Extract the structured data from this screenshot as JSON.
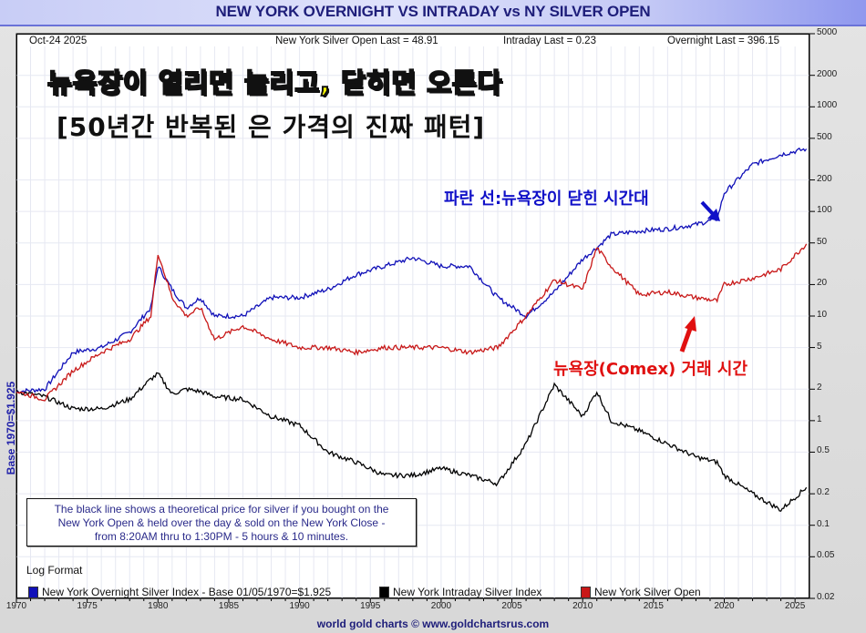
{
  "header": {
    "title": "NEW YORK OVERNIGHT VS INTRADAY vs NY SILVER OPEN",
    "date": "Oct-24  2025",
    "open_last": "New York Silver Open Last = 48.91",
    "intraday_last": "Intraday Last = 0.23",
    "overnight_last": "Overnight Last = 396.15"
  },
  "annotations": {
    "headline": "뉴욕장이 열리면 눌리고, 닫히면 오른다",
    "subheadline": "[50년간 반복된 은 가격의 진짜 패턴]",
    "blue_label": "파란 선:뉴욕장이 닫힌 시간대",
    "red_label": "뉴욕장(Comex) 거래 시간"
  },
  "note": {
    "line1": "The black line shows a theoretical price for silver if you bought on the",
    "line2": "New York Open & held over the day & sold on the New York Close -",
    "line3": "from 8:20AM thru to 1:30PM - 5 hours & 10 minutes."
  },
  "log_format": "Log Format",
  "y_axis_label": "Base 1970=$1.925",
  "footer": "world gold charts © www.goldchartsrus.com",
  "legend": [
    {
      "label": "New York Overnight Silver Index - Base 01/05/1970=$1.925",
      "color": "#1010b8"
    },
    {
      "label": "New York Intraday Silver Index",
      "color": "#000000"
    },
    {
      "label": "New York Silver Open",
      "color": "#c81818"
    }
  ],
  "y_ticks": [
    "5000",
    "2000",
    "1000",
    "500",
    "200",
    "100",
    "50",
    "20",
    "10",
    "5",
    "2",
    "1",
    "0.5",
    "0.2",
    "0.1",
    "0.05",
    "0.02"
  ],
  "x_ticks": [
    "1970",
    "1975",
    "1980",
    "1985",
    "1990",
    "1995",
    "2000",
    "2005",
    "2010",
    "2015",
    "2020",
    "2025"
  ],
  "chart_data": {
    "type": "line",
    "title": "NEW YORK OVERNIGHT VS INTRADAY vs NY SILVER OPEN",
    "xlabel": "",
    "ylabel": "Base 1970=$1.925",
    "yscale": "log",
    "ylim": [
      0.02,
      5000
    ],
    "xlim": [
      1970,
      2025.8
    ],
    "grid": true,
    "legend_position": "bottom",
    "x": [
      1970,
      1972,
      1974,
      1976,
      1978,
      1979.5,
      1980,
      1981,
      1982,
      1983,
      1984,
      1986,
      1988,
      1990,
      1992,
      1994,
      1996,
      1998,
      2000,
      2002,
      2004,
      2006,
      2008,
      2010,
      2011,
      2012,
      2014,
      2016,
      2018,
      2019.5,
      2020,
      2022,
      2024,
      2025.8
    ],
    "series": [
      {
        "name": "New York Overnight Silver Index - Base 01/05/1970=$1.925",
        "color": "#1010b8",
        "values": [
          1.9,
          2.0,
          4.5,
          5.0,
          7.0,
          12,
          30,
          18,
          12,
          15,
          10,
          10,
          15,
          15,
          18,
          25,
          30,
          36,
          30,
          30,
          15,
          10,
          17,
          35,
          45,
          60,
          65,
          68,
          75,
          85,
          150,
          280,
          350,
          396.15
        ]
      },
      {
        "name": "New York Intraday Silver Index",
        "color": "#000000",
        "values": [
          1.9,
          1.7,
          1.3,
          1.3,
          1.6,
          2.5,
          2.8,
          1.8,
          2.0,
          1.9,
          1.7,
          1.6,
          1.1,
          0.9,
          0.5,
          0.4,
          0.3,
          0.3,
          0.35,
          0.3,
          0.25,
          0.6,
          2.2,
          1.1,
          1.9,
          1.0,
          0.8,
          0.6,
          0.45,
          0.4,
          0.3,
          0.2,
          0.14,
          0.23
        ]
      },
      {
        "name": "New York Silver Open",
        "color": "#c81818",
        "values": [
          1.9,
          1.6,
          3.0,
          4.5,
          6.0,
          10,
          40,
          15,
          10,
          12,
          6,
          8,
          6,
          5,
          5,
          4.5,
          5,
          5,
          5,
          4.5,
          5,
          10,
          22,
          18,
          45,
          30,
          16,
          17,
          15,
          14,
          20,
          23,
          28,
          48.91
        ]
      }
    ]
  }
}
